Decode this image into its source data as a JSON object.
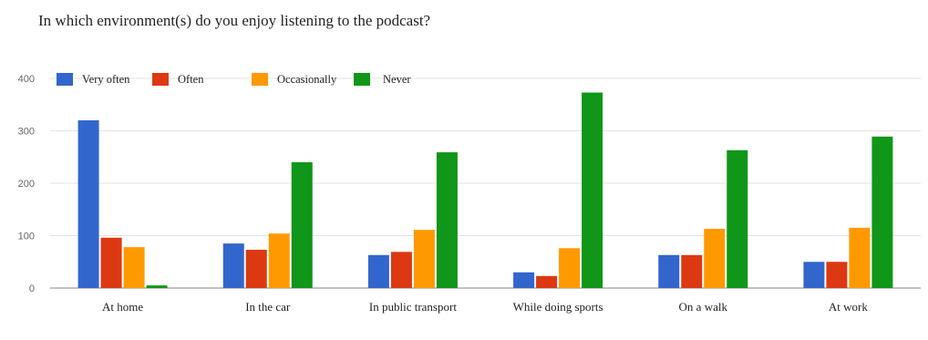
{
  "question": "In which environment(s) do you enjoy listening to the podcast?",
  "chart_data": {
    "type": "bar",
    "title": "",
    "xlabel": "",
    "ylabel": "",
    "ylim": [
      0,
      400
    ],
    "yticks": [
      0,
      100,
      200,
      300,
      400
    ],
    "grid": true,
    "legend_position": "top-left",
    "categories": [
      "At home",
      "In the car",
      "In public transport",
      "While doing sports",
      "On a walk",
      "At work"
    ],
    "series": [
      {
        "name": "Very often",
        "color": "#3366cc",
        "values": [
          320,
          85,
          63,
          30,
          63,
          50
        ]
      },
      {
        "name": "Often",
        "color": "#dc3912",
        "values": [
          96,
          73,
          69,
          23,
          63,
          50
        ]
      },
      {
        "name": "Occasionally",
        "color": "#ff9900",
        "values": [
          78,
          104,
          111,
          76,
          113,
          115
        ]
      },
      {
        "name": "Never",
        "color": "#109618",
        "values": [
          5,
          240,
          259,
          373,
          263,
          289
        ]
      }
    ]
  }
}
